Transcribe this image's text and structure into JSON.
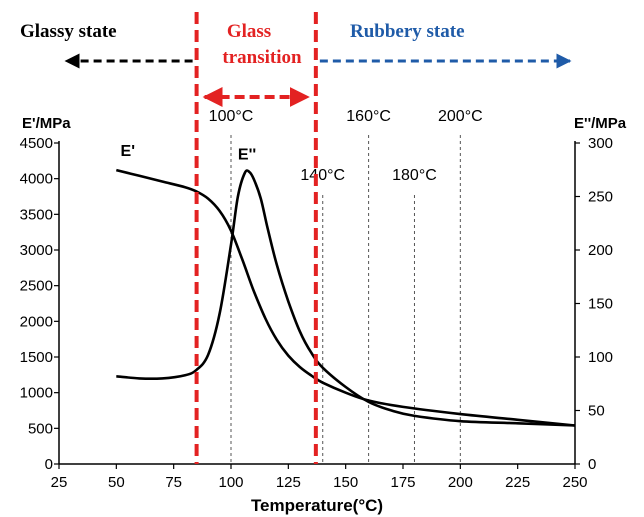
{
  "chart_data": {
    "type": "line",
    "xlabel": "Temperature(°C)",
    "y_left_label": "E'/MPa",
    "y_right_label": "E''/MPa",
    "xlim": [
      25,
      250
    ],
    "ylim_left": [
      0,
      4500
    ],
    "ylim_right": [
      0,
      300
    ],
    "x_ticks": [
      25,
      50,
      75,
      100,
      125,
      150,
      175,
      200,
      225,
      250
    ],
    "y_left_ticks": [
      0,
      500,
      1000,
      1500,
      2000,
      2500,
      3000,
      3500,
      4000,
      4500
    ],
    "y_right_ticks": [
      0,
      50,
      100,
      150,
      200,
      250,
      300
    ],
    "series": [
      {
        "name": "E'",
        "axis": "left",
        "x": [
          50,
          60,
          70,
          80,
          85,
          90,
          95,
          100,
          105,
          110,
          115,
          120,
          125,
          130,
          135,
          140,
          150,
          160,
          175,
          200,
          225,
          250
        ],
        "y": [
          4120,
          4040,
          3960,
          3880,
          3820,
          3720,
          3550,
          3270,
          2860,
          2420,
          2040,
          1740,
          1520,
          1360,
          1240,
          1140,
          1000,
          890,
          800,
          700,
          620,
          540
        ]
      },
      {
        "name": "E''",
        "axis": "right",
        "x": [
          50,
          60,
          70,
          80,
          85,
          90,
          95,
          100,
          103,
          106,
          108,
          110,
          113,
          116,
          120,
          125,
          130,
          135,
          140,
          150,
          160,
          170,
          180,
          200,
          225,
          250
        ],
        "y": [
          82,
          80,
          80,
          83,
          88,
          102,
          140,
          205,
          250,
          272,
          273,
          266,
          248,
          220,
          186,
          152,
          124,
          104,
          90,
          72,
          58,
          50,
          45,
          40,
          38,
          36
        ]
      }
    ],
    "curve_labels": [
      {
        "text": "E'",
        "x": 55,
        "y_left": 4320
      },
      {
        "text": "E''",
        "x": 107,
        "y_left": 4270
      }
    ],
    "temperature_markers": [
      {
        "label": "100°C",
        "x": 100,
        "label_row": "upper"
      },
      {
        "label": "140°C",
        "x": 140,
        "label_row": "lower"
      },
      {
        "label": "160°C",
        "x": 160,
        "label_row": "upper"
      },
      {
        "label": "180°C",
        "x": 180,
        "label_row": "lower"
      },
      {
        "label": "200°C",
        "x": 200,
        "label_row": "upper"
      }
    ],
    "transition_bounds": [
      85,
      137
    ],
    "regions": {
      "glassy": {
        "label": "Glassy state",
        "color": "#000000"
      },
      "transition": {
        "label_line1": "Glass",
        "label_line2": "transition",
        "color": "#e32222"
      },
      "rubbery": {
        "label": "Rubbery state",
        "color": "#1f5ba8"
      }
    },
    "grid": false,
    "legend": "none"
  }
}
